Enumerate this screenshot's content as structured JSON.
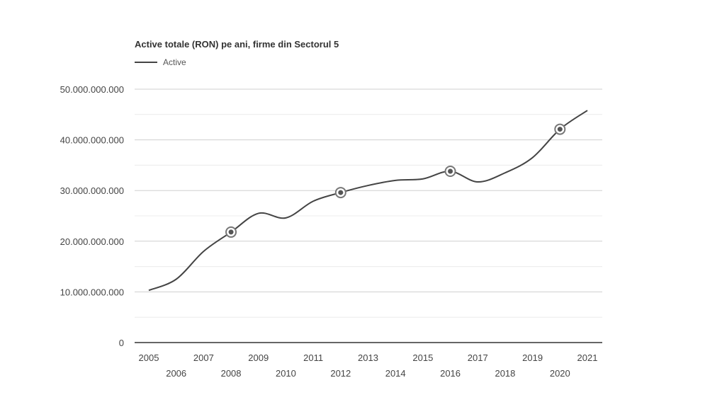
{
  "chart_data": {
    "type": "line",
    "title": "Active totale (RON) pe ani, firme din Sectorul 5",
    "xlabel": "",
    "ylabel": "",
    "x": [
      2005,
      2006,
      2007,
      2008,
      2009,
      2010,
      2011,
      2012,
      2013,
      2014,
      2015,
      2016,
      2017,
      2018,
      2019,
      2020,
      2021
    ],
    "ylim": [
      0,
      50000000000
    ],
    "y_ticks": [
      0,
      10000000000,
      20000000000,
      30000000000,
      40000000000,
      50000000000
    ],
    "y_tick_labels": [
      "0",
      "10.000.000.000",
      "20.000.000.000",
      "30.000.000.000",
      "40.000.000.000",
      "50.000.000.000"
    ],
    "x_tick_labels": [
      "2005",
      "2006",
      "2007",
      "2008",
      "2009",
      "2010",
      "2011",
      "2012",
      "2013",
      "2014",
      "2015",
      "2016",
      "2017",
      "2018",
      "2019",
      "2020",
      "2021"
    ],
    "series": [
      {
        "name": "Active",
        "color": "#444444",
        "values": [
          10300000000,
          12500000000,
          18000000000,
          21800000000,
          25500000000,
          24600000000,
          27900000000,
          29600000000,
          31000000000,
          32000000000,
          32300000000,
          33800000000,
          31700000000,
          33500000000,
          36500000000,
          42100000000,
          45800000000
        ]
      }
    ],
    "highlighted_x": [
      2008,
      2012,
      2016,
      2020
    ],
    "grid": true,
    "legend_position": "top-left"
  }
}
